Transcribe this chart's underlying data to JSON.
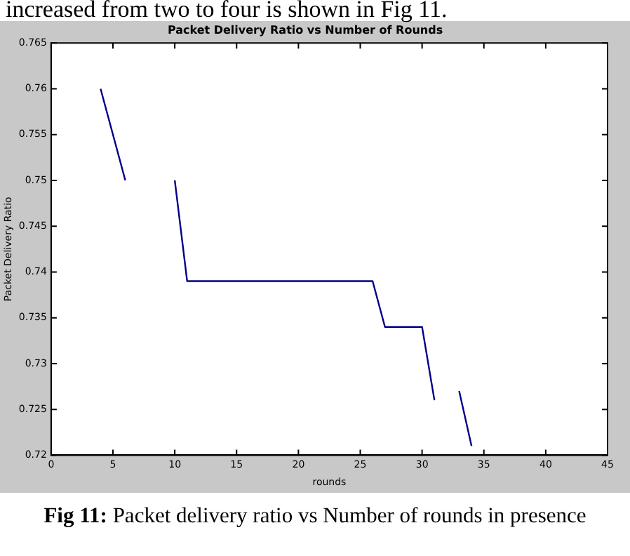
{
  "chart_data": {
    "type": "line",
    "title": "Packet Delivery Ratio vs Number of Rounds",
    "xlabel": "rounds",
    "ylabel": "Packet Delivery Ratio",
    "x": [
      4,
      6,
      8,
      10,
      11,
      26,
      27,
      30,
      31,
      32,
      33,
      34
    ],
    "series": [
      {
        "color": "#00008b",
        "values": [
          0.76,
          0.75,
          null,
          0.75,
          0.739,
          0.739,
          0.734,
          0.734,
          0.726,
          null,
          0.727,
          0.721
        ]
      }
    ],
    "xlim": [
      0,
      45
    ],
    "xticks": [
      0,
      5,
      10,
      15,
      20,
      25,
      30,
      35,
      40,
      45
    ],
    "ylim": [
      0.72,
      0.765
    ],
    "yticks": [
      0.72,
      0.725,
      0.73,
      0.735,
      0.74,
      0.745,
      0.75,
      0.755,
      0.76,
      0.765
    ],
    "grid": false,
    "legend": false,
    "annotations": [
      "increased from two to four is shown in Fig 11.",
      "Fig 11: Packet delivery ratio vs Number of rounds in presence"
    ]
  }
}
